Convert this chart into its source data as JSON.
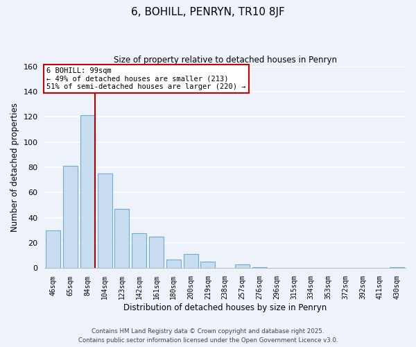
{
  "title": "6, BOHILL, PENRYN, TR10 8JF",
  "subtitle": "Size of property relative to detached houses in Penryn",
  "xlabel": "Distribution of detached houses by size in Penryn",
  "ylabel": "Number of detached properties",
  "bar_labels": [
    "46sqm",
    "65sqm",
    "84sqm",
    "104sqm",
    "123sqm",
    "142sqm",
    "161sqm",
    "180sqm",
    "200sqm",
    "219sqm",
    "238sqm",
    "257sqm",
    "276sqm",
    "296sqm",
    "315sqm",
    "334sqm",
    "353sqm",
    "372sqm",
    "392sqm",
    "411sqm",
    "430sqm"
  ],
  "bar_values": [
    30,
    81,
    121,
    75,
    47,
    28,
    25,
    7,
    11,
    5,
    0,
    3,
    1,
    0,
    0,
    0,
    0,
    0,
    0,
    0,
    1
  ],
  "bar_color": "#c9ddf0",
  "bar_edge_color": "#6aaed6",
  "ylim": [
    0,
    160
  ],
  "yticks": [
    0,
    20,
    40,
    60,
    80,
    100,
    120,
    140,
    160
  ],
  "marker_bar_index": 2,
  "marker_color": "#aa0000",
  "annotation_title": "6 BOHILL: 99sqm",
  "annotation_line1": "← 49% of detached houses are smaller (213)",
  "annotation_line2": "51% of semi-detached houses are larger (220) →",
  "annotation_box_color": "#ffffff",
  "annotation_box_edge": "#cc0000",
  "background_color": "#eef2fa",
  "grid_color": "#ffffff",
  "footer1": "Contains HM Land Registry data © Crown copyright and database right 2025.",
  "footer2": "Contains public sector information licensed under the Open Government Licence v3.0."
}
